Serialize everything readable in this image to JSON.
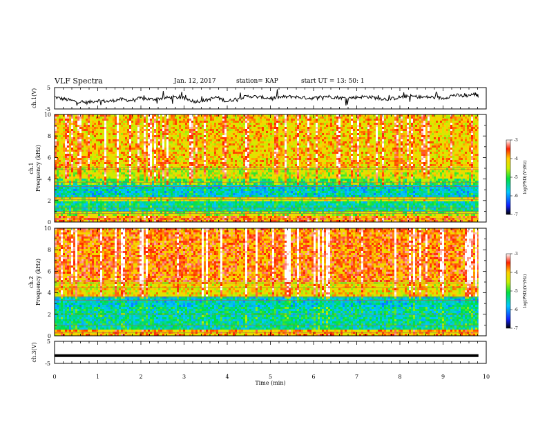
{
  "header": {
    "title": "VLF Spectra",
    "date": "Jan. 12, 2017",
    "station": "station= KAP",
    "start": "start  UT  =   13: 50: 1"
  },
  "chart_data": [
    {
      "type": "line",
      "panel": "ch1-waveform",
      "ylabel": "ch.1(V)",
      "ylim": [
        -5,
        5
      ],
      "yticks": [
        "5",
        "-5"
      ],
      "xlim": [
        0,
        10
      ],
      "series": [
        {
          "x": [
            0,
            0.25,
            0.5,
            0.75,
            1.0,
            1.25,
            1.5,
            1.75,
            2.0,
            2.25,
            2.5,
            2.75,
            3.0,
            3.25,
            3.5,
            3.75,
            4.0,
            4.25,
            4.5,
            4.75,
            5.0,
            5.25,
            5.5,
            5.75,
            6.0,
            6.25,
            6.5,
            6.75,
            7.0,
            7.25,
            7.5,
            7.75,
            8.0,
            8.25,
            8.5,
            8.75,
            9.0,
            9.25,
            9.5,
            9.75,
            9.82
          ],
          "values": [
            0.5,
            -0.5,
            -1.5,
            -2.0,
            -1.0,
            -1.5,
            -0.5,
            -1.0,
            0.0,
            -0.5,
            0.0,
            0.5,
            0.0,
            -1.5,
            -1.0,
            0.5,
            -1.5,
            0.0,
            1.0,
            0.5,
            0.0,
            0.5,
            0.8,
            0.3,
            0.0,
            1.0,
            0.5,
            0.0,
            0.5,
            0.8,
            0.0,
            -0.5,
            0.5,
            1.0,
            0.5,
            0.5,
            0.0,
            1.5,
            1.0,
            2.0,
            1.0
          ]
        }
      ]
    },
    {
      "type": "heatmap",
      "panel": "ch1-spectrogram",
      "ylabel_top": "ch.1",
      "ylabel": "Frequency (kHz)",
      "xlim": [
        0,
        10
      ],
      "ylim": [
        0,
        10
      ],
      "yticks": [
        "0",
        "2",
        "4",
        "6",
        "8",
        "10"
      ],
      "colorbar": {
        "label": "log(PSD)(V²/Hz)",
        "range": [
          -7,
          -3
        ],
        "ticks": [
          "-3",
          "-4",
          "-5",
          "-6",
          "-7"
        ]
      },
      "bands": [
        {
          "from": 0,
          "to": 0.5,
          "level": -3.8
        },
        {
          "from": 0.5,
          "to": 1.0,
          "level": -4.6
        },
        {
          "from": 1.0,
          "to": 2.0,
          "level": -5.4
        },
        {
          "from": 2.0,
          "to": 2.4,
          "level": -4.4
        },
        {
          "from": 2.4,
          "to": 3.4,
          "level": -5.6
        },
        {
          "from": 3.4,
          "to": 4.0,
          "level": -5.0
        },
        {
          "from": 4.0,
          "to": 5.0,
          "level": -4.4
        },
        {
          "from": 5.0,
          "to": 10.0,
          "level": -4.1
        }
      ],
      "lines_khz": [
        0.3,
        0.8,
        1.0,
        1.3,
        2.1,
        2.3,
        3.3,
        3.7,
        4.9,
        5.1
      ]
    },
    {
      "type": "heatmap",
      "panel": "ch2-spectrogram",
      "ylabel_top": "ch.2",
      "ylabel": "Frequency (kHz)",
      "xlim": [
        0,
        10
      ],
      "ylim": [
        0,
        10
      ],
      "yticks": [
        "0",
        "2",
        "4",
        "6",
        "8",
        "10"
      ],
      "colorbar": {
        "label": "log(PSD)(V²/Hz)",
        "range": [
          -7,
          -3
        ],
        "ticks": [
          "-3",
          "-4",
          "-5",
          "-6",
          "-7"
        ]
      },
      "bands": [
        {
          "from": 0,
          "to": 0.5,
          "level": -4.0
        },
        {
          "from": 0.5,
          "to": 2.6,
          "level": -5.4
        },
        {
          "from": 2.6,
          "to": 3.6,
          "level": -5.6
        },
        {
          "from": 3.6,
          "to": 5.0,
          "level": -4.2
        },
        {
          "from": 5.0,
          "to": 10.0,
          "level": -3.7
        }
      ],
      "lines_khz": [
        0.3,
        1.0,
        2.0,
        3.3,
        3.6,
        4.5,
        4.9,
        5.1
      ]
    },
    {
      "type": "line",
      "panel": "ch3-waveform",
      "ylabel": "ch.3(V)",
      "ylim": [
        -5,
        5
      ],
      "yticks": [
        "5",
        "-5"
      ],
      "xlim": [
        0,
        10
      ],
      "xlabel": "Time (min)",
      "xticks": [
        "0",
        "1",
        "2",
        "3",
        "4",
        "5",
        "6",
        "7",
        "8",
        "9",
        "10"
      ],
      "series": [
        {
          "x": [
            0,
            9.82
          ],
          "values": [
            -1.5,
            -1.5
          ]
        }
      ]
    }
  ]
}
